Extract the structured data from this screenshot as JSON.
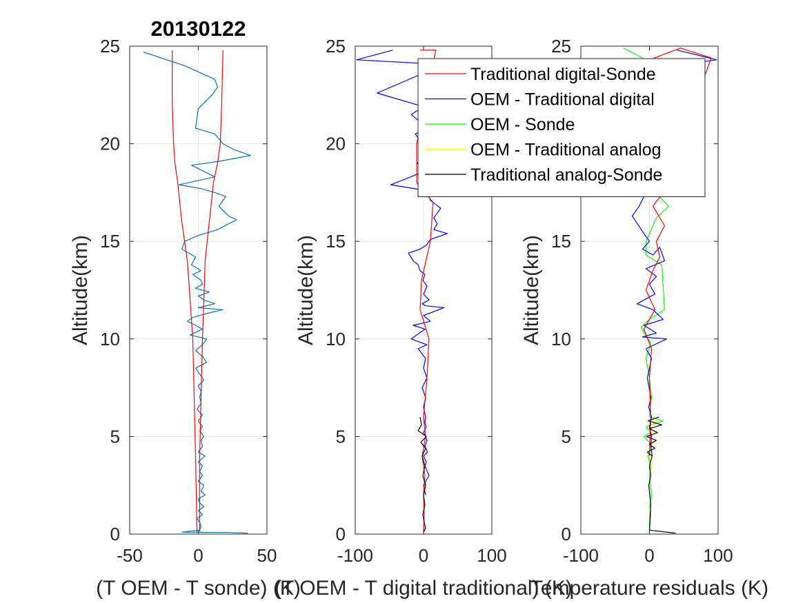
{
  "chart_data": [
    {
      "type": "line",
      "title": "20130122",
      "xlabel": "(T OEM - T sonde) (K)",
      "ylabel": "Altitude(km)",
      "xlim": [
        -50,
        50
      ],
      "ylim": [
        0,
        25
      ],
      "xticks": [
        "-50",
        "0",
        "50"
      ],
      "yticks": [
        "0",
        "5",
        "10",
        "15",
        "20",
        "25"
      ],
      "grid": true,
      "series": [
        {
          "color": "#0072bd",
          "x": [
            -40,
            -10,
            12,
            14,
            10,
            0,
            -2,
            12,
            18,
            26,
            38,
            15,
            -5,
            12,
            -14,
            2,
            12,
            20,
            15,
            22,
            28,
            22,
            14,
            0,
            -10,
            -12,
            -2,
            -5,
            2,
            -4,
            2,
            3,
            -2,
            8,
            0,
            4,
            12,
            0,
            18,
            6,
            -4,
            -8,
            -2,
            3,
            -6,
            6,
            3,
            -2,
            3,
            6,
            -2,
            1,
            4,
            0,
            2,
            1,
            2,
            -1,
            3,
            0,
            3,
            1,
            4,
            2,
            3,
            0,
            5,
            0,
            3,
            1,
            3,
            0,
            4,
            2,
            5,
            0,
            1,
            4,
            0,
            3,
            -1,
            1,
            2,
            1,
            -12,
            22,
            36
          ],
          "y": [
            24.7,
            24.0,
            23.3,
            22.9,
            22.5,
            21.8,
            20.8,
            20.5,
            20.0,
            19.7,
            19.4,
            19.1,
            18.9,
            18.3,
            17.9,
            17.7,
            17.5,
            17.3,
            16.8,
            16.3,
            16.1,
            15.9,
            15.6,
            15.3,
            15.0,
            14.6,
            14.2,
            13.8,
            13.5,
            13.3,
            13.0,
            12.8,
            12.6,
            12.4,
            12.2,
            12.0,
            11.8,
            11.6,
            11.5,
            11.3,
            11.1,
            10.9,
            10.7,
            10.5,
            10.2,
            10.0,
            9.7,
            9.4,
            9.1,
            8.8,
            8.5,
            8.2,
            7.9,
            7.6,
            7.3,
            7.0,
            6.7,
            6.4,
            6.1,
            5.8,
            5.5,
            5.3,
            5.0,
            4.8,
            4.5,
            4.2,
            4.0,
            3.7,
            3.5,
            3.2,
            3.0,
            2.7,
            2.5,
            2.2,
            2.0,
            1.8,
            1.6,
            1.4,
            1.2,
            1.0,
            0.8,
            0.6,
            0.4,
            0.2,
            0.1,
            0.08,
            0.05
          ]
        },
        {
          "color": "#ff0000",
          "x": [
            -19,
            -19,
            -18,
            -17,
            -15,
            -12,
            -8,
            -6,
            -4,
            -3,
            -2,
            -1
          ],
          "y": [
            24.8,
            22.0,
            20.0,
            19.0,
            18.0,
            16.0,
            14.0,
            12.0,
            10.0,
            7.0,
            4.0,
            0.1
          ]
        },
        {
          "color": "#ff0000",
          "x": [
            18,
            17,
            16,
            14,
            11,
            8,
            5,
            4,
            3,
            2,
            1,
            1
          ],
          "y": [
            24.8,
            22.0,
            20.0,
            19.0,
            18.0,
            16.0,
            14.0,
            12.0,
            10.0,
            7.0,
            4.0,
            0.1
          ]
        }
      ]
    },
    {
      "type": "line",
      "title": "",
      "xlabel": "(T OEM - T digital traditional) (K)",
      "ylabel": "Altitude(km)",
      "xlim": [
        -100,
        100
      ],
      "ylim": [
        0,
        25
      ],
      "xticks": [
        "-100",
        "0",
        "100"
      ],
      "yticks": [
        "0",
        "5",
        "10",
        "15",
        "20",
        "25"
      ],
      "grid": true,
      "series": [
        {
          "color": "#0000ff",
          "x": [
            -45,
            -98,
            60,
            -8,
            -68,
            0,
            -18,
            5,
            -12,
            8,
            -10,
            10,
            -48,
            5,
            10,
            25,
            15,
            20,
            15,
            35,
            10,
            4,
            -5,
            -22,
            -15,
            -8,
            -5,
            2,
            -1,
            5,
            0,
            8,
            -2,
            3,
            30,
            0,
            10,
            -15,
            2,
            -18,
            5,
            -8,
            3,
            0,
            5,
            -2,
            3,
            0,
            3,
            2,
            4,
            0,
            3,
            5,
            2,
            6,
            0,
            4,
            2,
            8,
            0,
            3
          ],
          "y": [
            24.8,
            24.3,
            24.0,
            23.5,
            22.6,
            21.9,
            21.5,
            20.8,
            20.5,
            19.5,
            19.0,
            18.7,
            17.9,
            17.6,
            17.1,
            16.7,
            16.2,
            15.9,
            15.6,
            15.4,
            15.1,
            14.8,
            14.6,
            14.4,
            14.0,
            13.8,
            13.5,
            13.3,
            13.0,
            12.7,
            12.3,
            12.0,
            11.8,
            11.7,
            11.6,
            11.2,
            10.9,
            10.7,
            10.5,
            10.0,
            9.7,
            9.5,
            9.0,
            8.5,
            8.0,
            7.5,
            7.0,
            6.5,
            6.0,
            5.7,
            5.5,
            5.2,
            5.0,
            4.8,
            4.5,
            4.2,
            4.0,
            3.7,
            3.5,
            3.0,
            2.5,
            2.0
          ]
        },
        {
          "color": "#ff0000",
          "x": [
            -5,
            18,
            2,
            -10,
            -10,
            14,
            10,
            -3,
            -5,
            8,
            5,
            0,
            3,
            -2,
            2,
            0,
            1,
            0
          ],
          "y": [
            24.8,
            24.8,
            22.0,
            20.0,
            18.0,
            17.0,
            15.0,
            13.0,
            11.5,
            10.0,
            8.0,
            6.0,
            5.0,
            4.0,
            3.0,
            2.0,
            1.0,
            0.1
          ]
        },
        {
          "color": "#000000",
          "x": [
            -5,
            -3,
            -8,
            4,
            -4,
            3,
            -2,
            2,
            -1,
            3,
            0,
            2,
            -1,
            1,
            3,
            0
          ],
          "y": [
            6.0,
            5.6,
            5.3,
            5.0,
            4.7,
            4.4,
            4.0,
            3.5,
            3.0,
            2.5,
            2.0,
            1.5,
            1.0,
            0.6,
            0.3,
            0.1
          ]
        }
      ]
    },
    {
      "type": "line",
      "title": "",
      "xlabel": "Temperature residuals (K)",
      "ylabel": "Altitude(km)",
      "xlim": [
        -100,
        100
      ],
      "ylim": [
        0,
        25
      ],
      "xticks": [
        "-100",
        "0",
        "100"
      ],
      "yticks": [
        "0",
        "5",
        "10",
        "15",
        "20",
        "25"
      ],
      "grid": true,
      "legend": {
        "position": "top-right",
        "entries": [
          {
            "label": "Traditional digital-Sonde",
            "color": "#ff0000"
          },
          {
            "label": "OEM - Traditional digital",
            "color": "#0000ff"
          },
          {
            "label": "OEM - Sonde",
            "color": "#00ff00"
          },
          {
            "label": "OEM - Traditional analog",
            "color": "#ffff00"
          },
          {
            "label": "Traditional analog-Sonde",
            "color": "#000000"
          }
        ]
      },
      "series": [
        {
          "color": "#00ff00",
          "x": [
            -38,
            -10,
            12,
            28,
            10,
            -5,
            -5,
            18,
            22,
            0,
            -12,
            -6,
            2,
            -5,
            0,
            3,
            0,
            20,
            -5,
            2,
            -8,
            0,
            3,
            -2,
            2,
            0,
            3,
            1,
            2,
            0
          ],
          "y": [
            24.9,
            24.4,
            17.4,
            16.8,
            16.2,
            15.0,
            14.3,
            13.8,
            11.5,
            11.0,
            10.6,
            10.2,
            9.8,
            9.0,
            8.0,
            7.0,
            6.0,
            5.8,
            5.5,
            5.2,
            5.0,
            4.7,
            4.5,
            4.0,
            3.5,
            3.0,
            2.0,
            1.5,
            1.0,
            0.1
          ]
        },
        {
          "color": "#ffff00",
          "x": [
            2,
            10,
            0,
            8,
            2,
            6,
            0,
            4,
            0,
            3,
            1
          ],
          "y": [
            6.0,
            5.8,
            5.5,
            5.2,
            5.0,
            4.8,
            4.5,
            4.2,
            4.0,
            3.5,
            3.0
          ]
        },
        {
          "color": "#0000ff",
          "x": [
            40,
            98,
            35,
            -5,
            -15,
            -25,
            -8,
            0,
            -10,
            5,
            15,
            22,
            -5,
            10,
            0,
            8,
            -18,
            5,
            20,
            -8,
            10,
            -10,
            25,
            -5,
            3,
            -3,
            2,
            -1,
            3,
            0,
            3,
            2,
            4
          ],
          "y": [
            24.8,
            24.3,
            24.0,
            17.5,
            16.8,
            16.3,
            15.4,
            15.0,
            14.6,
            14.3,
            14.7,
            14.0,
            13.6,
            13.2,
            12.8,
            12.3,
            11.8,
            11.5,
            11.0,
            10.7,
            10.3,
            10.1,
            10.0,
            9.5,
            9.0,
            8.0,
            7.0,
            6.5,
            6.0,
            5.5,
            5.0,
            4.5,
            4.0
          ]
        },
        {
          "color": "#ff0000",
          "x": [
            0,
            45,
            90,
            20,
            5,
            22,
            10,
            15,
            5,
            -5,
            8,
            -8,
            3,
            0,
            2,
            0
          ],
          "y": [
            24.3,
            24.9,
            24.4,
            17.5,
            16.8,
            15.8,
            15.0,
            14.2,
            13.5,
            12.5,
            11.5,
            10.5,
            9.5,
            8.0,
            6.0,
            4.0
          ]
        },
        {
          "color": "#000000",
          "x": [
            14,
            -2,
            18,
            0,
            12,
            -4,
            10,
            0,
            8,
            -3,
            4,
            0,
            2,
            -1,
            2,
            1,
            0,
            38
          ],
          "y": [
            6.0,
            5.8,
            5.6,
            5.4,
            5.2,
            5.0,
            4.8,
            4.6,
            4.4,
            4.2,
            4.0,
            3.5,
            3.0,
            2.5,
            1.5,
            1.0,
            0.2,
            0.05
          ]
        }
      ]
    }
  ]
}
